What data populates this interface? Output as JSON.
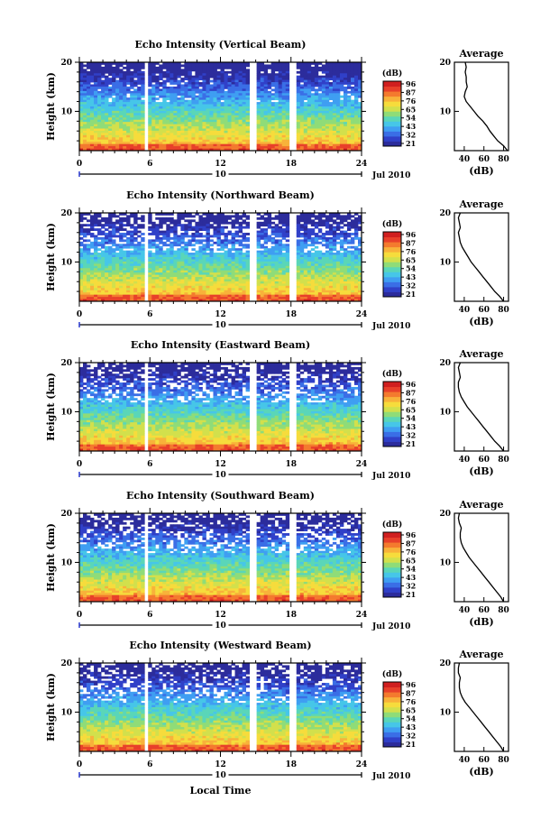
{
  "figure": {
    "xlabel_bottom": "Local Time",
    "date_label": "Jul 2010",
    "day_label": "10"
  },
  "colors": {
    "colormap": [
      "#2c2c9c",
      "#3040c8",
      "#3a6ee6",
      "#3f9ef2",
      "#46c6e8",
      "#5ad6b8",
      "#8fdc78",
      "#d2e04c",
      "#f6dc3c",
      "#f8b23a",
      "#f47a2e",
      "#e8402a",
      "#d01f1f"
    ],
    "gap": "#ffffff"
  },
  "chart_data": [
    {
      "type": "heatmap",
      "title": "Echo Intensity (Vertical Beam)",
      "ylabel": "Height (km)",
      "xticks": [
        "0",
        "6",
        "12",
        "18",
        "24"
      ],
      "xlim": [
        0,
        24
      ],
      "yticks": [
        "10",
        "20"
      ],
      "ylim": [
        2,
        20
      ],
      "data_gaps_hours": [
        [
          5.4,
          5.8
        ],
        [
          14.4,
          15.0
        ],
        [
          17.9,
          18.4
        ]
      ],
      "colorbar": {
        "label": "(dB)",
        "ticks": [
          "96",
          "87",
          "76",
          "65",
          "54",
          "43",
          "32",
          "21"
        ]
      },
      "profile": {
        "title": "Average",
        "xlabel": "(dB)",
        "xticks": [
          "40",
          "60",
          "80"
        ],
        "yticks": [
          "10",
          "20"
        ],
        "height_km": [
          2,
          3,
          4,
          5,
          6,
          7,
          8,
          9,
          10,
          11,
          12,
          13,
          14,
          15,
          16,
          17,
          18,
          19,
          20
        ],
        "db": [
          84,
          80,
          74,
          70,
          66,
          63,
          59,
          54,
          50,
          46,
          42,
          40,
          41,
          43,
          42,
          42,
          41,
          42,
          41
        ]
      }
    },
    {
      "type": "heatmap",
      "title": "Echo Intensity (Northward Beam)",
      "ylabel": "Height (km)",
      "xticks": [
        "0",
        "6",
        "12",
        "18",
        "24"
      ],
      "xlim": [
        0,
        24
      ],
      "yticks": [
        "10",
        "20"
      ],
      "ylim": [
        2,
        20
      ],
      "data_gaps_hours": [
        [
          5.4,
          5.8
        ],
        [
          14.4,
          15.0
        ],
        [
          17.9,
          18.4
        ]
      ],
      "colorbar": {
        "label": "(dB)",
        "ticks": [
          "96",
          "87",
          "76",
          "65",
          "54",
          "43",
          "32",
          "21"
        ]
      },
      "profile": {
        "title": "Average",
        "xlabel": "(dB)",
        "xticks": [
          "40",
          "60",
          "80"
        ],
        "yticks": [
          "10",
          "20"
        ],
        "height_km": [
          2,
          3,
          4,
          5,
          6,
          7,
          8,
          9,
          10,
          11,
          12,
          13,
          14,
          15,
          16,
          17,
          18,
          19,
          20
        ],
        "db": [
          80,
          76,
          71,
          67,
          63,
          59,
          55,
          51,
          47,
          44,
          41,
          38,
          36,
          35,
          34,
          36,
          35,
          34,
          36
        ]
      }
    },
    {
      "type": "heatmap",
      "title": "Echo Intensity (Eastward Beam)",
      "ylabel": "Height (km)",
      "xticks": [
        "0",
        "6",
        "12",
        "18",
        "24"
      ],
      "xlim": [
        0,
        24
      ],
      "yticks": [
        "10",
        "20"
      ],
      "ylim": [
        2,
        20
      ],
      "data_gaps_hours": [
        [
          5.4,
          5.8
        ],
        [
          14.4,
          15.0
        ],
        [
          17.9,
          18.4
        ]
      ],
      "colorbar": {
        "label": "(dB)",
        "ticks": [
          "96",
          "87",
          "76",
          "65",
          "54",
          "43",
          "32",
          "21"
        ]
      },
      "profile": {
        "title": "Average",
        "xlabel": "(dB)",
        "xticks": [
          "40",
          "60",
          "80"
        ],
        "yticks": [
          "10",
          "20"
        ],
        "height_km": [
          2,
          3,
          4,
          5,
          6,
          7,
          8,
          9,
          10,
          11,
          12,
          13,
          14,
          15,
          16,
          17,
          18,
          19,
          20
        ],
        "db": [
          80,
          76,
          71,
          67,
          63,
          59,
          55,
          51,
          47,
          43,
          40,
          37,
          35,
          34,
          34,
          36,
          35,
          34,
          36
        ]
      }
    },
    {
      "type": "heatmap",
      "title": "Echo Intensity (Southward Beam)",
      "ylabel": "Height (km)",
      "xticks": [
        "0",
        "6",
        "12",
        "18",
        "24"
      ],
      "xlim": [
        0,
        24
      ],
      "yticks": [
        "10",
        "20"
      ],
      "ylim": [
        2,
        20
      ],
      "data_gaps_hours": [
        [
          5.4,
          5.8
        ],
        [
          14.4,
          15.0
        ],
        [
          17.9,
          18.4
        ]
      ],
      "colorbar": {
        "label": "(dB)",
        "ticks": [
          "96",
          "87",
          "76",
          "65",
          "54",
          "43",
          "32",
          "21"
        ]
      },
      "profile": {
        "title": "Average",
        "xlabel": "(dB)",
        "xticks": [
          "40",
          "60",
          "80"
        ],
        "yticks": [
          "10",
          "20"
        ],
        "height_km": [
          2,
          3,
          4,
          5,
          6,
          7,
          8,
          9,
          10,
          11,
          12,
          13,
          14,
          15,
          16,
          17,
          18,
          19,
          20
        ],
        "db": [
          80,
          77,
          73,
          69,
          65,
          61,
          57,
          53,
          49,
          45,
          42,
          39,
          37,
          36,
          36,
          37,
          35,
          34,
          35
        ]
      }
    },
    {
      "type": "heatmap",
      "title": "Echo Intensity (Westward Beam)",
      "ylabel": "Height (km)",
      "xticks": [
        "0",
        "6",
        "12",
        "18",
        "24"
      ],
      "xlim": [
        0,
        24
      ],
      "yticks": [
        "10",
        "20"
      ],
      "ylim": [
        2,
        20
      ],
      "data_gaps_hours": [
        [
          5.4,
          5.8
        ],
        [
          14.4,
          15.0
        ],
        [
          17.9,
          18.4
        ]
      ],
      "colorbar": {
        "label": "(dB)",
        "ticks": [
          "96",
          "87",
          "76",
          "65",
          "54",
          "43",
          "32",
          "21"
        ]
      },
      "profile": {
        "title": "Average",
        "xlabel": "(dB)",
        "xticks": [
          "40",
          "60",
          "80"
        ],
        "yticks": [
          "10",
          "20"
        ],
        "height_km": [
          2,
          3,
          4,
          5,
          6,
          7,
          8,
          9,
          10,
          11,
          12,
          13,
          14,
          15,
          16,
          17,
          18,
          19,
          20
        ],
        "db": [
          80,
          77,
          73,
          69,
          65,
          61,
          57,
          53,
          49,
          45,
          41,
          38,
          36,
          35,
          35,
          36,
          34,
          34,
          35
        ]
      }
    }
  ]
}
